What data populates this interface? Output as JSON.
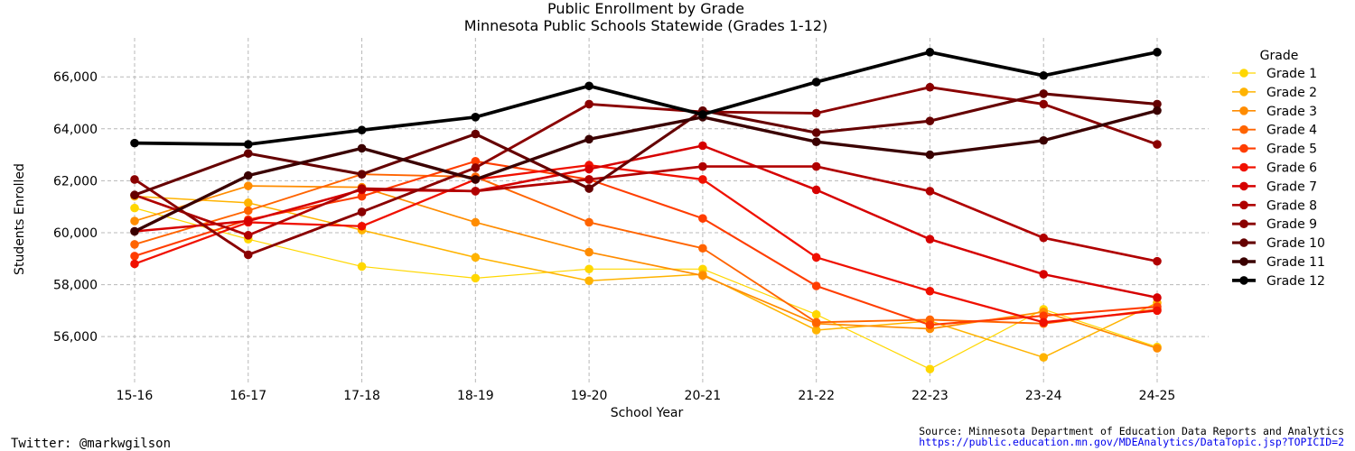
{
  "chart_data": {
    "type": "line",
    "title": "Public Enrollment by Grade",
    "subtitle": "Minnesota Public Schools Statewide (Grades 1-12)",
    "xlabel": "School Year",
    "ylabel": "Students Enrolled",
    "categories": [
      "15-16",
      "16-17",
      "17-18",
      "18-19",
      "19-20",
      "20-21",
      "21-22",
      "22-23",
      "23-24",
      "24-25"
    ],
    "ylim": [
      54200,
      67500
    ],
    "yticks": [
      56000,
      58000,
      60000,
      62000,
      64000,
      66000
    ],
    "ytick_labels": [
      "56,000",
      "58,000",
      "60,000",
      "62,000",
      "64,000",
      "66,000"
    ],
    "grid": true,
    "legend_title": "Grade",
    "legend_position": "right",
    "series": [
      {
        "name": "Grade 1",
        "color": "#ffd700",
        "width": 1.2,
        "values": [
          60950,
          59750,
          58700,
          58250,
          58600,
          58600,
          56850,
          54750,
          57050,
          55600
        ]
      },
      {
        "name": "Grade 2",
        "color": "#ffb300",
        "width": 1.5,
        "values": [
          61400,
          61150,
          60100,
          59050,
          58150,
          58400,
          56250,
          56600,
          55200,
          57300
        ]
      },
      {
        "name": "Grade 3",
        "color": "#ff8c00",
        "width": 1.7,
        "values": [
          60450,
          61800,
          61750,
          60400,
          59250,
          58350,
          56500,
          56300,
          56950,
          55550
        ]
      },
      {
        "name": "Grade 4",
        "color": "#ff6400",
        "width": 1.9,
        "values": [
          59550,
          60850,
          62250,
          62150,
          60400,
          59400,
          56550,
          56650,
          56500,
          57050
        ]
      },
      {
        "name": "Grade 5",
        "color": "#ff3d00",
        "width": 2.1,
        "values": [
          59100,
          60500,
          61400,
          62750,
          62050,
          60550,
          57950,
          56450,
          56800,
          57150
        ]
      },
      {
        "name": "Grade 6",
        "color": "#f01000",
        "width": 2.3,
        "values": [
          58800,
          60400,
          60250,
          62050,
          62600,
          62050,
          59050,
          57750,
          56550,
          57000
        ]
      },
      {
        "name": "Grade 7",
        "color": "#d60000",
        "width": 2.5,
        "values": [
          60050,
          60450,
          61650,
          61600,
          62450,
          63350,
          61650,
          59750,
          58400,
          57500
        ]
      },
      {
        "name": "Grade 8",
        "color": "#b00000",
        "width": 2.7,
        "values": [
          61450,
          59900,
          61700,
          61600,
          62050,
          62550,
          62550,
          61600,
          59800,
          58900
        ]
      },
      {
        "name": "Grade 9",
        "color": "#8a0000",
        "width": 2.9,
        "values": [
          62050,
          59150,
          60800,
          62500,
          64950,
          64650,
          64600,
          65600,
          64950,
          63400
        ]
      },
      {
        "name": "Grade 10",
        "color": "#650000",
        "width": 3.1,
        "values": [
          61450,
          63050,
          62250,
          63800,
          61700,
          64700,
          63850,
          64300,
          65350,
          64950
        ]
      },
      {
        "name": "Grade 11",
        "color": "#3a0000",
        "width": 3.4,
        "values": [
          60050,
          62200,
          63250,
          62050,
          63600,
          64450,
          63500,
          63000,
          63550,
          64700
        ]
      },
      {
        "name": "Grade 12",
        "color": "#000000",
        "width": 3.7,
        "values": [
          63450,
          63400,
          63950,
          64450,
          65650,
          64550,
          65800,
          66950,
          66050,
          66950
        ]
      }
    ]
  },
  "footer": {
    "twitter": "Twitter: @markwgilson",
    "source": "Source: Minnesota Department of Education Data Reports and Analytics",
    "url": "https://public.education.mn.gov/MDEAnalytics/DataTopic.jsp?TOPICID=2"
  },
  "colors": {
    "grid": "#b8b8b8",
    "url": "#0000ee"
  }
}
